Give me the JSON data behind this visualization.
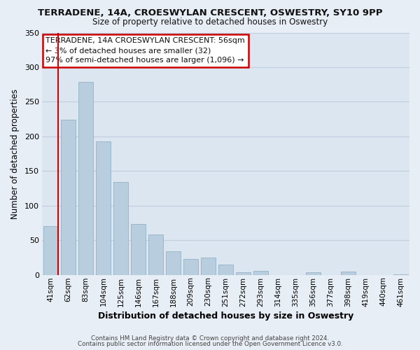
{
  "title_line1": "TERRADENE, 14A, CROESWYLAN CRESCENT, OSWESTRY, SY10 9PP",
  "title_line2": "Size of property relative to detached houses in Oswestry",
  "xlabel": "Distribution of detached houses by size in Oswestry",
  "ylabel": "Number of detached properties",
  "bar_labels": [
    "41sqm",
    "62sqm",
    "83sqm",
    "104sqm",
    "125sqm",
    "146sqm",
    "167sqm",
    "188sqm",
    "209sqm",
    "230sqm",
    "251sqm",
    "272sqm",
    "293sqm",
    "314sqm",
    "335sqm",
    "356sqm",
    "377sqm",
    "398sqm",
    "419sqm",
    "440sqm",
    "461sqm"
  ],
  "bar_values": [
    70,
    224,
    279,
    193,
    134,
    73,
    58,
    34,
    23,
    25,
    15,
    4,
    6,
    0,
    0,
    4,
    0,
    5,
    0,
    0,
    1
  ],
  "bar_color": "#b8cedf",
  "vline_color": "#cc0000",
  "vline_bar_index": 0,
  "ylim": [
    0,
    350
  ],
  "yticks": [
    0,
    50,
    100,
    150,
    200,
    250,
    300,
    350
  ],
  "annotation_title": "TERRADENE, 14A CROESWYLAN CRESCENT: 56sqm",
  "annotation_line2": "← 3% of detached houses are smaller (32)",
  "annotation_line3": "97% of semi-detached houses are larger (1,096) →",
  "annotation_box_facecolor": "#ffffff",
  "annotation_border_color": "#cc0000",
  "footer_line1": "Contains HM Land Registry data © Crown copyright and database right 2024.",
  "footer_line2": "Contains public sector information licensed under the Open Government Licence v3.0.",
  "fig_facecolor": "#e8eef5",
  "plot_facecolor": "#dce6f0",
  "grid_color": "#c0cfe0"
}
